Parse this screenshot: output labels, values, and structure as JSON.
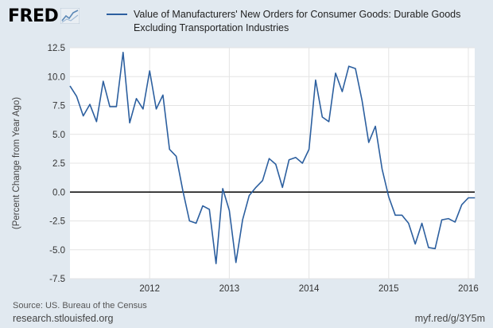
{
  "logo": {
    "text": "FRED",
    "icon": "chart-line-icon"
  },
  "chart_data": {
    "type": "line",
    "title": "",
    "xlabel": "",
    "ylabel": "(Percent Change from Year Ago)",
    "legend": "top",
    "grid": true,
    "xlim": [
      2011.0,
      2016.08
    ],
    "ylim": [
      -7.5,
      12.5
    ],
    "yticks": [
      12.5,
      10.0,
      7.5,
      5.0,
      2.5,
      0.0,
      -2.5,
      -5.0,
      -7.5
    ],
    "ytick_labels": [
      "12.5",
      "10.0",
      "7.5",
      "5.0",
      "2.5",
      "0.0",
      "-2.5",
      "-5.0",
      "-7.5"
    ],
    "xticks": [
      2012,
      2013,
      2014,
      2015,
      2016
    ],
    "xtick_labels": [
      "2012",
      "2013",
      "2014",
      "2015",
      "2016"
    ],
    "zero_line": 0,
    "series": [
      {
        "name": "Value of Manufacturers' New Orders for Consumer Goods: Durable Goods Excluding Transportation Industries",
        "color": "#2c5f9f",
        "x": [
          2011.0,
          2011.083,
          2011.167,
          2011.25,
          2011.333,
          2011.417,
          2011.5,
          2011.583,
          2011.667,
          2011.75,
          2011.833,
          2011.917,
          2012.0,
          2012.083,
          2012.167,
          2012.25,
          2012.333,
          2012.417,
          2012.5,
          2012.583,
          2012.667,
          2012.75,
          2012.833,
          2012.917,
          2013.0,
          2013.083,
          2013.167,
          2013.25,
          2013.333,
          2013.417,
          2013.5,
          2013.583,
          2013.667,
          2013.75,
          2013.833,
          2013.917,
          2014.0,
          2014.083,
          2014.167,
          2014.25,
          2014.333,
          2014.417,
          2014.5,
          2014.583,
          2014.667,
          2014.75,
          2014.833,
          2014.917,
          2015.0,
          2015.083,
          2015.167,
          2015.25,
          2015.333,
          2015.417,
          2015.5,
          2015.583,
          2015.667,
          2015.75,
          2015.833,
          2015.917,
          2016.0,
          2016.083
        ],
        "values": [
          9.2,
          8.3,
          6.6,
          7.6,
          6.1,
          9.6,
          7.4,
          7.4,
          12.1,
          6.0,
          8.1,
          7.2,
          10.5,
          7.2,
          8.4,
          3.7,
          3.1,
          0.1,
          -2.5,
          -2.7,
          -1.2,
          -1.5,
          -6.2,
          0.3,
          -1.6,
          -6.1,
          -2.4,
          -0.3,
          0.4,
          1.0,
          2.9,
          2.4,
          0.4,
          2.8,
          3.0,
          2.5,
          3.7,
          9.7,
          6.5,
          6.1,
          10.3,
          8.7,
          10.9,
          10.7,
          7.9,
          4.3,
          5.7,
          2.0,
          -0.4,
          -2.0,
          -2.0,
          -2.7,
          -4.5,
          -2.7,
          -4.8,
          -4.9,
          -2.4,
          -2.3,
          -2.6,
          -1.1,
          -0.5,
          -0.5
        ]
      }
    ]
  },
  "footer": {
    "source": "Source: US. Bureau of the Census",
    "site": "research.stlouisfed.org",
    "short_url": "myf.red/g/3Y5m"
  }
}
